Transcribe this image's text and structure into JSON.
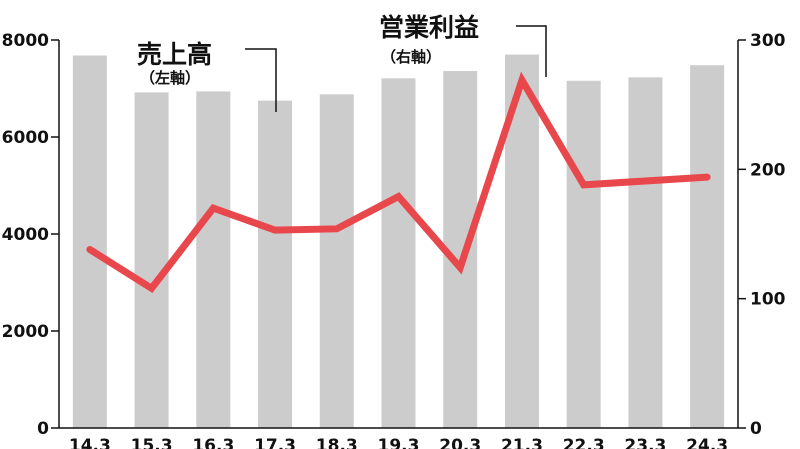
{
  "chart_data": {
    "type": "bar+line",
    "categories": [
      "14.3",
      "15.3",
      "16.3",
      "17.3",
      "18.3",
      "19.3",
      "20.3",
      "21.3",
      "22.3",
      "23.3",
      "24.3"
    ],
    "series": [
      {
        "name": "売上高",
        "axis_note": "（左軸）",
        "type": "bar",
        "axis": "left",
        "color": "#cccccc",
        "values": [
          7680,
          6920,
          6940,
          6750,
          6880,
          7210,
          7360,
          7700,
          7160,
          7230,
          7480
        ]
      },
      {
        "name": "営業利益",
        "axis_note": "（右軸）",
        "type": "line",
        "axis": "right",
        "color": "#e8474c",
        "values": [
          138,
          108,
          170,
          153,
          154,
          179,
          124,
          269,
          188,
          191,
          194
        ]
      }
    ],
    "left_axis": {
      "ylim": [
        0,
        8000
      ],
      "ticks": [
        "0",
        "2000",
        "4000",
        "6000",
        "8000"
      ]
    },
    "right_axis": {
      "ylim": [
        0,
        300
      ],
      "ticks": [
        "0",
        "100",
        "200",
        "300"
      ]
    },
    "grid": false,
    "title": "",
    "xlabel": "",
    "ylabel": ""
  }
}
